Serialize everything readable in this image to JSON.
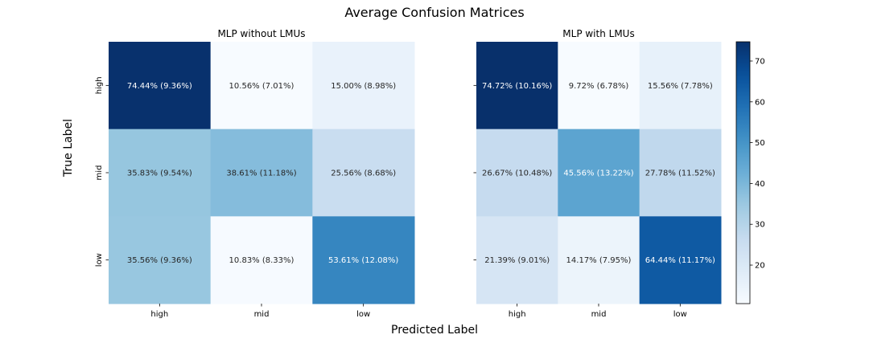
{
  "chart_data": {
    "type": "heatmap",
    "title": "Average Confusion Matrices",
    "xlabel": "Predicted Label",
    "ylabel": "True Label",
    "colormap": "Blues",
    "colorbar": {
      "min": 10.56,
      "max": 74.72,
      "ticks": [
        20,
        30,
        40,
        50,
        60,
        70
      ]
    },
    "row_labels": [
      "high",
      "mid",
      "low"
    ],
    "col_labels": [
      "high",
      "mid",
      "low"
    ],
    "panels": [
      {
        "title": "MLP without LMUs",
        "values": [
          [
            74.44,
            10.56,
            15.0
          ],
          [
            35.83,
            38.61,
            25.56
          ],
          [
            35.56,
            10.83,
            53.61
          ]
        ],
        "labels": [
          [
            "74.44% (9.36%)",
            "10.56% (7.01%)",
            "15.00% (8.98%)"
          ],
          [
            "35.83% (9.54%)",
            "38.61% (11.18%)",
            "25.56% (8.68%)"
          ],
          [
            "35.56% (9.36%)",
            "10.83% (8.33%)",
            "53.61% (12.08%)"
          ]
        ]
      },
      {
        "title": "MLP with LMUs",
        "values": [
          [
            74.72,
            9.72,
            15.56
          ],
          [
            26.67,
            45.56,
            27.78
          ],
          [
            21.39,
            14.17,
            64.44
          ]
        ],
        "labels": [
          [
            "74.72% (10.16%)",
            "9.72% (6.78%)",
            "15.56% (7.78%)"
          ],
          [
            "26.67% (10.48%)",
            "45.56% (13.22%)",
            "27.78% (11.52%)"
          ],
          [
            "21.39% (9.01%)",
            "14.17% (7.95%)",
            "64.44% (11.17%)"
          ]
        ]
      }
    ]
  }
}
